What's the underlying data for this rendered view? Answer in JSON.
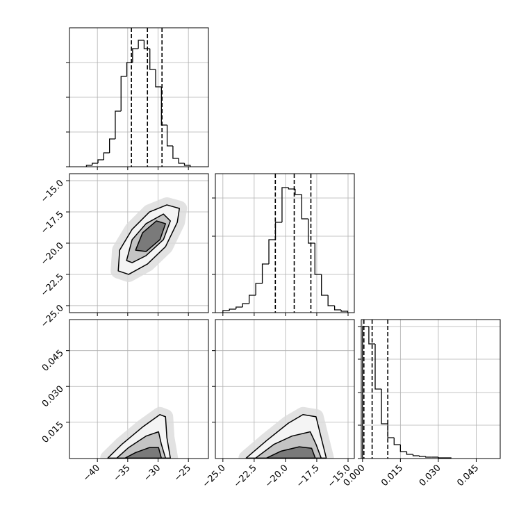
{
  "chart_data": [
    {
      "type": "histogram",
      "color": "#000000",
      "bins": [
        -41.8,
        -40.85,
        -39.9,
        -38.95,
        -38.0,
        -37.05,
        -36.1,
        -35.15,
        -34.2,
        -33.25,
        -32.3,
        -31.35,
        -30.4,
        -29.45,
        -28.5,
        -27.55,
        -26.6,
        -25.65,
        -24.7
      ],
      "counts": [
        2,
        5,
        10,
        20,
        40,
        80,
        130,
        150,
        170,
        182,
        170,
        140,
        115,
        60,
        30,
        12,
        5,
        2
      ],
      "quantiles": [
        -34.39,
        -31.75,
        -29.35
      ],
      "xlim": [
        -44.6,
        -21.7
      ],
      "xticks": [
        -40,
        -35,
        -30,
        -25
      ],
      "ylim": [
        0,
        200
      ],
      "yticks": [
        0,
        50,
        100,
        150
      ],
      "grid": true,
      "tick_labels": {
        "x": false,
        "y": false
      }
    },
    {
      "type": "contour",
      "line_color": "#000000",
      "fill_colors": [
        "#f4f4f4",
        "#c4c4c4",
        "#7a7a7a"
      ],
      "halo_color": "#dcdcdc",
      "contours": [
        {
          "x": [
            -36.56,
            -36.33,
            -34.27,
            -31.41,
            -28.55,
            -26.48,
            -26.83,
            -28.77,
            -31.75,
            -34.85
          ],
          "y": [
            -22.22,
            -20.56,
            -18.89,
            -17.5,
            -16.94,
            -17.22,
            -18.33,
            -20.28,
            -21.67,
            -22.5
          ]
        },
        {
          "x": [
            -35.19,
            -34.27,
            -31.98,
            -29.12,
            -27.97,
            -29.12,
            -31.98,
            -34.27
          ],
          "y": [
            -21.39,
            -19.72,
            -18.44,
            -17.67,
            -18.22,
            -19.72,
            -21.0,
            -21.56
          ]
        },
        {
          "x": [
            -33.7,
            -32.55,
            -30.26,
            -28.77,
            -29.69,
            -31.98
          ],
          "y": [
            -20.56,
            -19.17,
            -18.22,
            -18.44,
            -19.72,
            -20.67
          ]
        }
      ],
      "xlim": [
        -44.6,
        -21.7
      ],
      "xticks": [
        -40,
        -35,
        -30,
        -25
      ],
      "ylim": [
        -25.56,
        -14.44
      ],
      "yticks": [
        {
          "value": -25.0,
          "label": "−25.0"
        },
        {
          "value": -22.5,
          "label": "−22.5"
        },
        {
          "value": -20.0,
          "label": "−20.0"
        },
        {
          "value": -17.5,
          "label": "−17.5"
        },
        {
          "value": -15.0,
          "label": "−15.0"
        }
      ],
      "grid": true,
      "tick_labels": {
        "x": false,
        "y": true
      }
    },
    {
      "type": "histogram",
      "color": "#000000",
      "bins": [
        -25.0,
        -24.475,
        -23.95,
        -23.425,
        -22.9,
        -22.375,
        -21.85,
        -21.325,
        -20.8,
        -20.275,
        -19.75,
        -19.225,
        -18.7,
        -18.175,
        -17.65,
        -17.125,
        -16.6,
        -16.075,
        -15.55,
        -15.025
      ],
      "counts": [
        3,
        5,
        8,
        13,
        25,
        42,
        70,
        105,
        130,
        180,
        178,
        170,
        135,
        100,
        55,
        25,
        10,
        4,
        2
      ],
      "quantiles": [
        -20.81,
        -19.3,
        -17.97
      ],
      "xlim": [
        -25.6,
        -14.5
      ],
      "xticks": [
        -25,
        -22.5,
        -20,
        -17.5,
        -15
      ],
      "ylim": [
        0,
        200
      ],
      "yticks": [
        0,
        55,
        110,
        165
      ],
      "grid": true,
      "tick_labels": {
        "x": false,
        "y": false
      }
    },
    {
      "type": "contour",
      "line_color": "#000000",
      "fill_colors": [
        "#f4f4f4",
        "#c4c4c4",
        "#7a7a7a"
      ],
      "halo_color": "#dcdcdc",
      "contours": [
        {
          "x": [
            -38.28,
            -35.99,
            -32.55,
            -29.69,
            -28.77,
            -28.55,
            -27.97
          ],
          "y": [
            0,
            0.0057,
            0.013,
            0.0182,
            0.0173,
            0.0086,
            0
          ]
        },
        {
          "x": [
            -36.79,
            -34.85,
            -31.98,
            -29.92,
            -29.46,
            -28.77
          ],
          "y": [
            0,
            0.0044,
            0.0092,
            0.011,
            0.0058,
            0
          ]
        },
        {
          "x": [
            -35.42,
            -33.7,
            -31.41,
            -29.92,
            -29.46
          ],
          "y": [
            0,
            0.0023,
            0.0044,
            0.0044,
            0
          ]
        }
      ],
      "xlim": [
        -44.6,
        -21.7
      ],
      "xticks": [
        {
          "value": -40,
          "label": "−40"
        },
        {
          "value": -35,
          "label": "−35"
        },
        {
          "value": -30,
          "label": "−30"
        },
        {
          "value": -25,
          "label": "−25"
        }
      ],
      "ylim": [
        -0.0002,
        0.058
      ],
      "yticks": [
        0.015,
        {
          "value": 0.03,
          "label": "0.030"
        },
        0.045
      ],
      "grid": true,
      "tick_labels": {
        "x": true,
        "y": true
      }
    },
    {
      "type": "contour",
      "line_color": "#000000",
      "fill_colors": [
        "#f4f4f4",
        "#c4c4c4",
        "#7a7a7a"
      ],
      "halo_color": "#dcdcdc",
      "contours": [
        {
          "x": [
            -23.14,
            -21.51,
            -19.77,
            -18.6,
            -17.56,
            -17.15,
            -16.74
          ],
          "y": [
            0,
            0.0073,
            0.0146,
            0.0182,
            0.0173,
            0.0086,
            0
          ]
        },
        {
          "x": [
            -22.38,
            -20.93,
            -19.48,
            -18.02,
            -17.56,
            -17.15
          ],
          "y": [
            0,
            0.0057,
            0.0092,
            0.011,
            0.0058,
            0
          ]
        },
        {
          "x": [
            -21.51,
            -20.35,
            -18.9,
            -17.91,
            -17.62
          ],
          "y": [
            0,
            0.0029,
            0.0047,
            0.0041,
            0
          ]
        }
      ],
      "xlim": [
        -25.6,
        -14.5
      ],
      "xticks": [
        {
          "value": -25.0,
          "label": "−25.0"
        },
        {
          "value": -22.5,
          "label": "−22.5"
        },
        {
          "value": -20.0,
          "label": "−20.0"
        },
        {
          "value": -17.5,
          "label": "−17.5"
        },
        {
          "value": -15.0,
          "label": "−15.0"
        }
      ],
      "ylim": [
        -0.0002,
        0.058
      ],
      "yticks": [
        0.015,
        0.03,
        0.045
      ],
      "grid": true,
      "tick_labels": {
        "x": true,
        "y": false
      }
    },
    {
      "type": "histogram",
      "color": "#000000",
      "bins": [
        0,
        0.0025,
        0.005,
        0.0075,
        0.01,
        0.0125,
        0.015,
        0.0175,
        0.02,
        0.0225,
        0.025,
        0.0275,
        0.03,
        0.0325,
        0.035
      ],
      "counts": [
        190,
        165,
        100,
        50,
        30,
        20,
        10,
        6,
        4,
        3,
        2,
        2,
        1,
        1
      ],
      "quantiles": [
        0.00054,
        0.0038,
        0.01
      ],
      "xlim": [
        -0.0005,
        0.0545
      ],
      "xticks": [
        {
          "value": 0,
          "label": "0.000"
        },
        0.015,
        {
          "value": 0.03,
          "label": "0.030"
        },
        0.045
      ],
      "ylim": [
        0,
        200
      ],
      "yticks": [
        0,
        48,
        95,
        143,
        190
      ],
      "grid": true,
      "tick_labels": {
        "x": true,
        "y": false
      }
    }
  ]
}
